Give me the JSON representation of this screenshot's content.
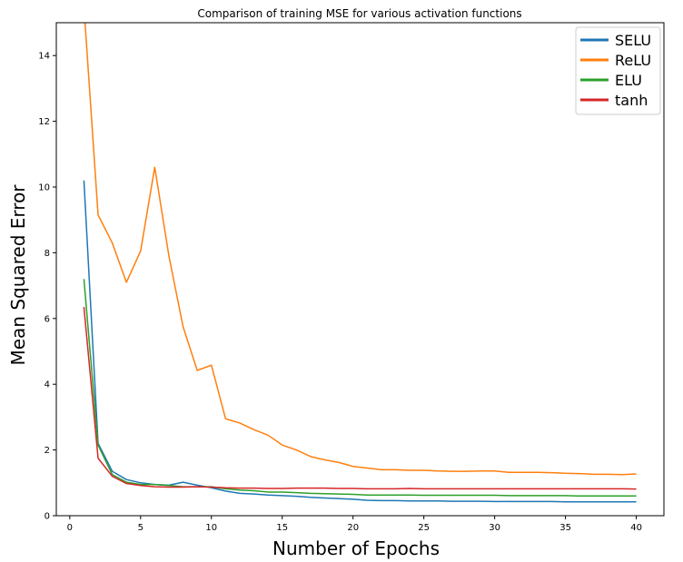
{
  "chart_data": {
    "type": "line",
    "title": "Comparison of training MSE for various activation functions",
    "xlabel": "Number of Epochs",
    "ylabel": "Mean Squared Error",
    "xlim": [
      -0.95,
      41.95
    ],
    "ylim": [
      0,
      15
    ],
    "xticks": [
      0,
      5,
      10,
      15,
      20,
      25,
      30,
      35,
      40
    ],
    "yticks": [
      0,
      2,
      4,
      6,
      8,
      10,
      12,
      14
    ],
    "grid": false,
    "legend_position": "top-right",
    "x": [
      1,
      2,
      3,
      4,
      5,
      6,
      7,
      8,
      9,
      10,
      11,
      12,
      13,
      14,
      15,
      16,
      17,
      18,
      19,
      20,
      21,
      22,
      23,
      24,
      25,
      26,
      27,
      28,
      29,
      30,
      31,
      32,
      33,
      34,
      35,
      36,
      37,
      38,
      39,
      40
    ],
    "series": [
      {
        "name": "SELU",
        "color": "#1f77b4",
        "values": [
          10.2,
          2.2,
          1.35,
          1.1,
          1.0,
          0.95,
          0.93,
          1.02,
          0.93,
          0.85,
          0.75,
          0.68,
          0.66,
          0.63,
          0.61,
          0.59,
          0.56,
          0.54,
          0.52,
          0.5,
          0.47,
          0.46,
          0.46,
          0.45,
          0.45,
          0.45,
          0.44,
          0.44,
          0.44,
          0.43,
          0.43,
          0.43,
          0.43,
          0.43,
          0.42,
          0.42,
          0.42,
          0.42,
          0.42,
          0.42
        ]
      },
      {
        "name": "ReLU",
        "color": "#ff7f0e",
        "values": [
          15.5,
          9.15,
          8.3,
          7.1,
          8.05,
          10.6,
          7.9,
          5.75,
          4.42,
          4.58,
          2.95,
          2.82,
          2.62,
          2.45,
          2.15,
          2.0,
          1.8,
          1.7,
          1.62,
          1.5,
          1.45,
          1.4,
          1.4,
          1.38,
          1.38,
          1.36,
          1.35,
          1.35,
          1.36,
          1.36,
          1.32,
          1.32,
          1.32,
          1.31,
          1.29,
          1.28,
          1.26,
          1.26,
          1.25,
          1.27
        ]
      },
      {
        "name": "ELU",
        "color": "#2ca02c",
        "values": [
          7.2,
          2.15,
          1.25,
          1.02,
          0.95,
          0.95,
          0.92,
          0.88,
          0.88,
          0.88,
          0.82,
          0.78,
          0.76,
          0.72,
          0.72,
          0.7,
          0.68,
          0.67,
          0.66,
          0.65,
          0.63,
          0.63,
          0.63,
          0.63,
          0.62,
          0.62,
          0.62,
          0.62,
          0.62,
          0.62,
          0.61,
          0.61,
          0.61,
          0.61,
          0.61,
          0.6,
          0.6,
          0.6,
          0.6,
          0.6
        ]
      },
      {
        "name": "tanh",
        "color": "#d62728",
        "values": [
          6.35,
          1.75,
          1.2,
          0.98,
          0.92,
          0.88,
          0.87,
          0.87,
          0.88,
          0.87,
          0.85,
          0.84,
          0.84,
          0.83,
          0.83,
          0.84,
          0.84,
          0.84,
          0.83,
          0.83,
          0.82,
          0.82,
          0.82,
          0.83,
          0.82,
          0.82,
          0.82,
          0.82,
          0.82,
          0.82,
          0.82,
          0.82,
          0.82,
          0.82,
          0.82,
          0.82,
          0.82,
          0.82,
          0.82,
          0.81
        ]
      }
    ]
  }
}
